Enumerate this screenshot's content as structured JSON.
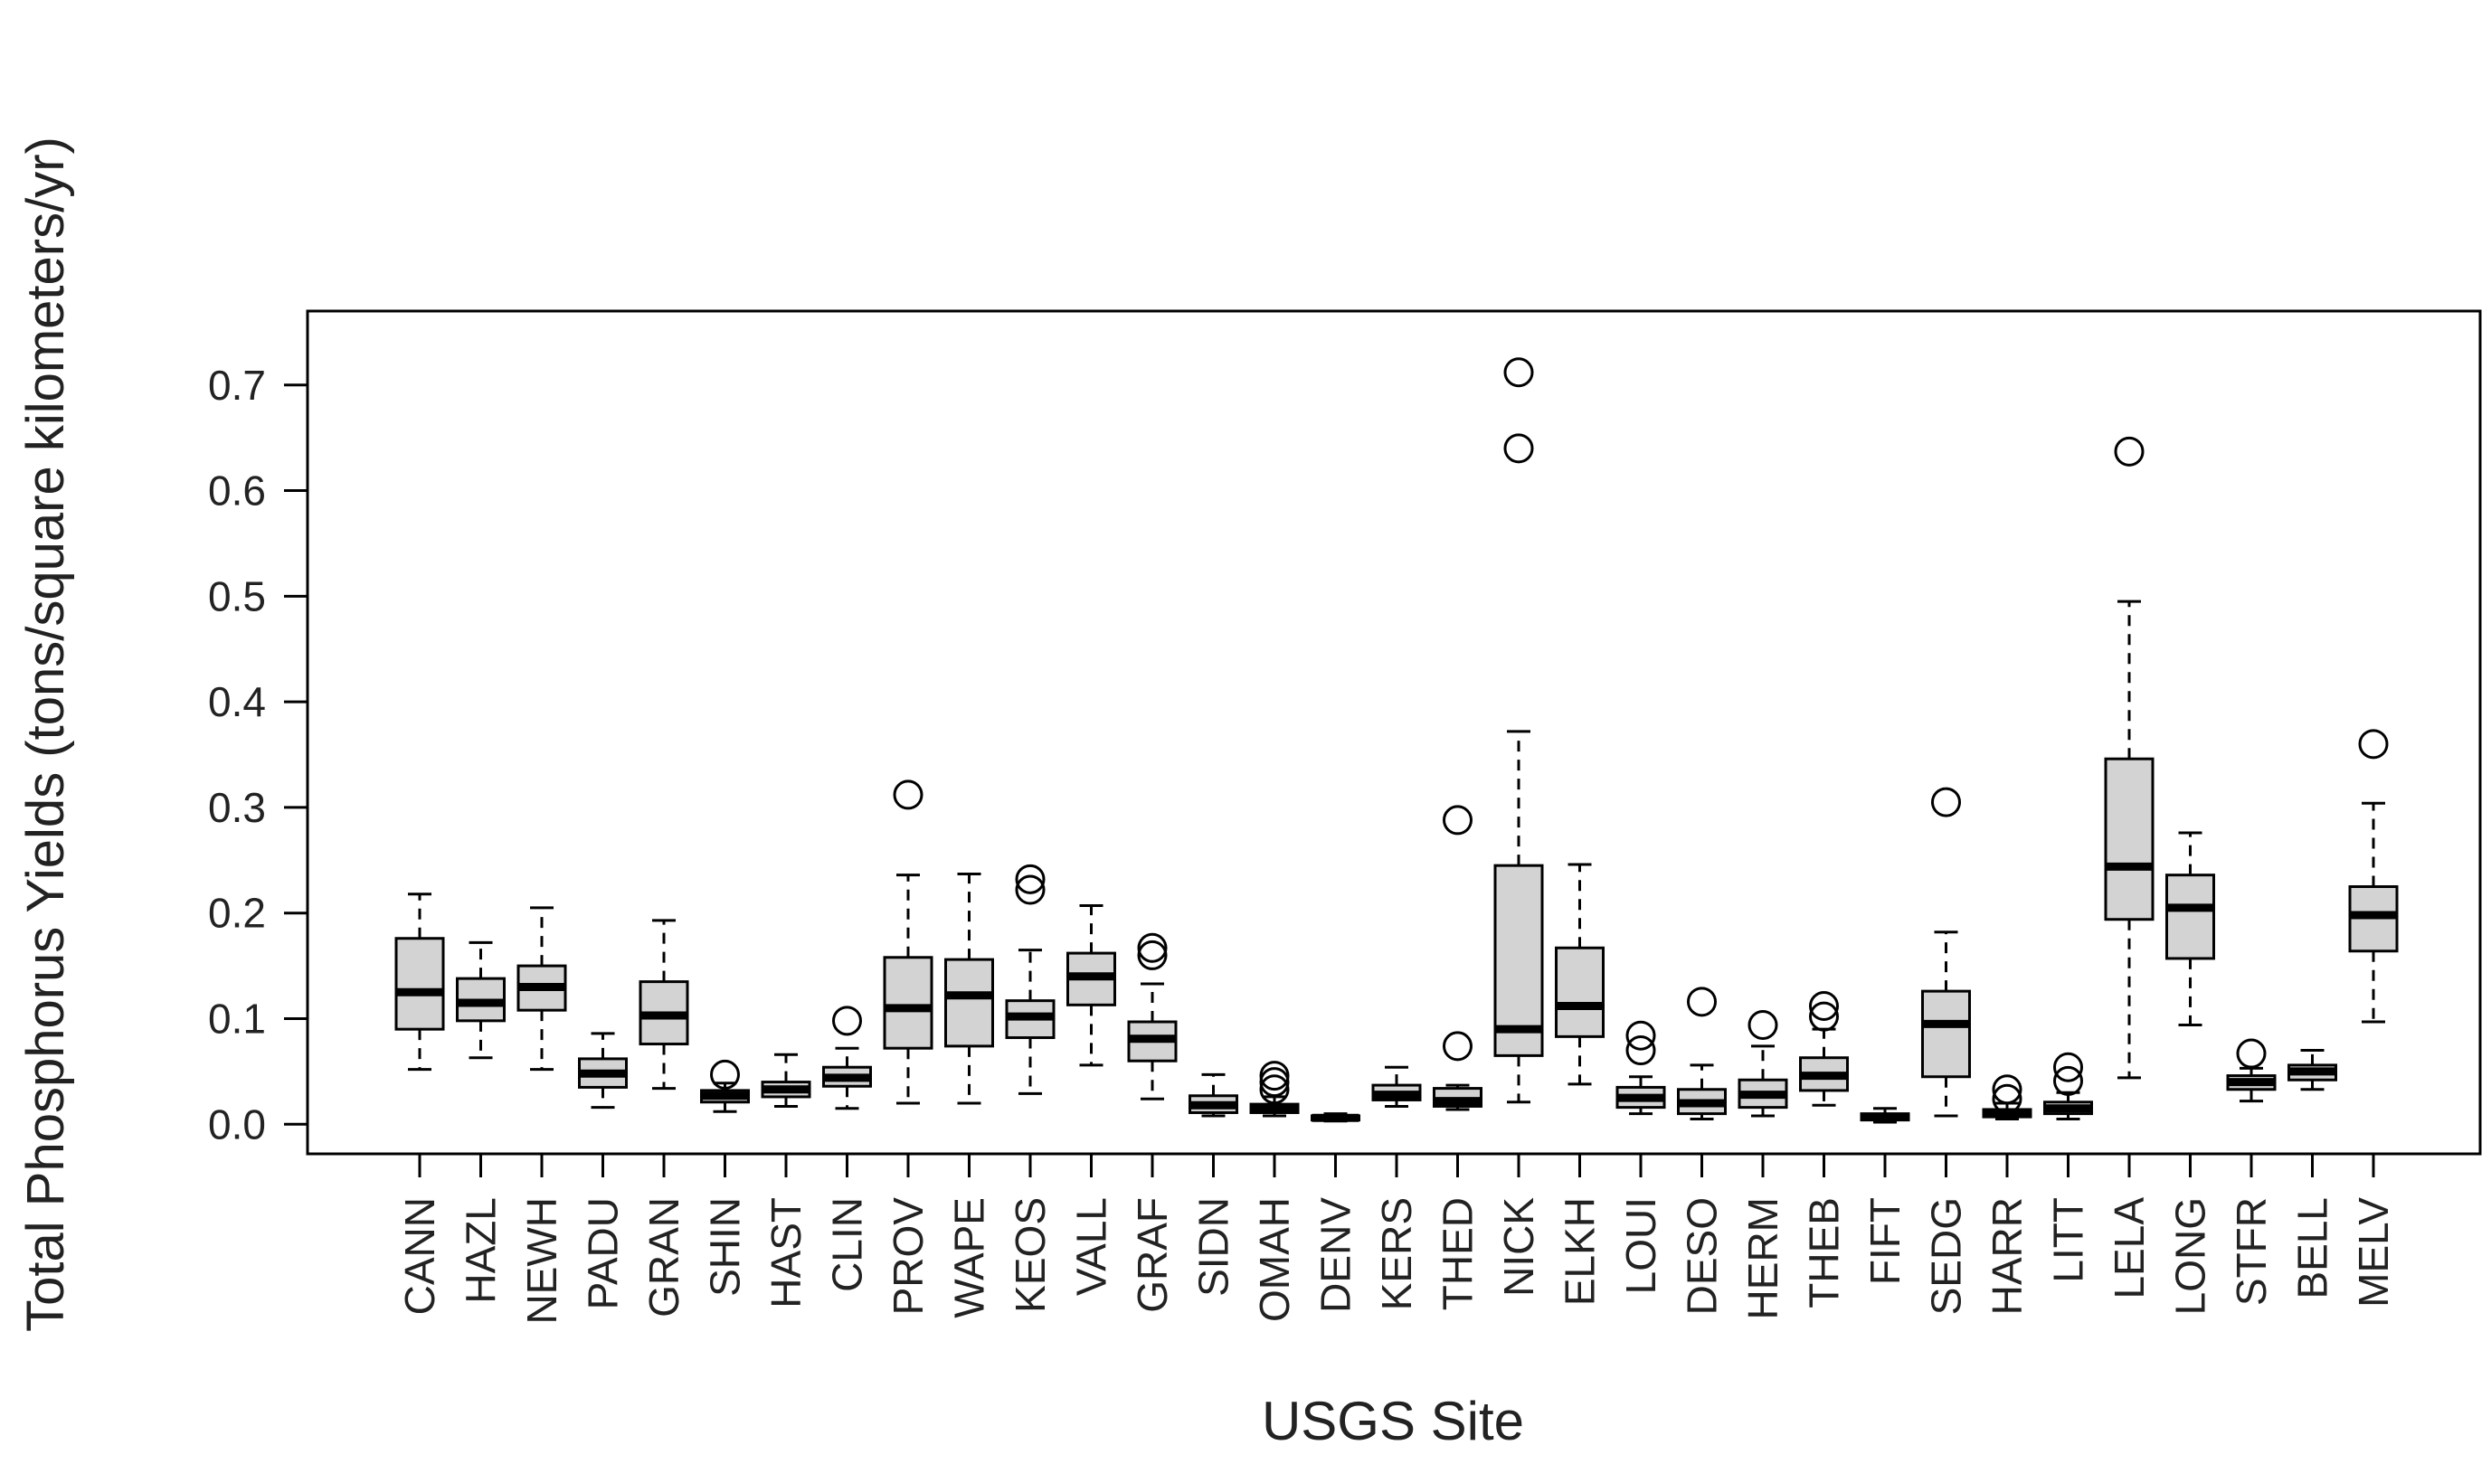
{
  "chart_data": {
    "type": "boxplot",
    "title": "",
    "xlabel": "USGS Site",
    "ylabel": "Total Phosphorus Yields (tons/square kilometers/yr)",
    "ylim": [
      -0.028,
      0.77
    ],
    "yticks": [
      0.0,
      0.1,
      0.2,
      0.3,
      0.4,
      0.5,
      0.6,
      0.7
    ],
    "ytick_labels": [
      "0.0",
      "0.1",
      "0.2",
      "0.3",
      "0.4",
      "0.5",
      "0.6",
      "0.7"
    ],
    "box_fill": "#d3d3d3",
    "box_stroke": "#000000",
    "categories": [
      "CANN",
      "HAZL",
      "NEWH",
      "PADU",
      "GRAN",
      "SHIN",
      "HAST",
      "CLIN",
      "PROV",
      "WAPE",
      "KEOS",
      "VALL",
      "GRAF",
      "SIDN",
      "OMAH",
      "DENV",
      "KERS",
      "THED",
      "NICK",
      "ELKH",
      "LOUI",
      "DESO",
      "HERM",
      "THEB",
      "FIFT",
      "SEDG",
      "HARR",
      "LITT",
      "LELA",
      "LONG",
      "STFR",
      "BELL",
      "MELV"
    ],
    "boxes": [
      {
        "site": "CANN",
        "min": 0.052,
        "q1": 0.09,
        "median": 0.125,
        "q3": 0.176,
        "max": 0.218,
        "outliers": []
      },
      {
        "site": "HAZL",
        "min": 0.063,
        "q1": 0.098,
        "median": 0.115,
        "q3": 0.138,
        "max": 0.172,
        "outliers": []
      },
      {
        "site": "NEWH",
        "min": 0.052,
        "q1": 0.108,
        "median": 0.13,
        "q3": 0.15,
        "max": 0.205,
        "outliers": []
      },
      {
        "site": "PADU",
        "min": 0.016,
        "q1": 0.035,
        "median": 0.048,
        "q3": 0.062,
        "max": 0.086,
        "outliers": []
      },
      {
        "site": "GRAN",
        "min": 0.034,
        "q1": 0.076,
        "median": 0.103,
        "q3": 0.135,
        "max": 0.193,
        "outliers": []
      },
      {
        "site": "SHIN",
        "min": 0.012,
        "q1": 0.021,
        "median": 0.027,
        "q3": 0.032,
        "max": 0.039,
        "outliers": [
          0.047
        ]
      },
      {
        "site": "HAST",
        "min": 0.017,
        "q1": 0.026,
        "median": 0.033,
        "q3": 0.04,
        "max": 0.066,
        "outliers": []
      },
      {
        "site": "CLIN",
        "min": 0.015,
        "q1": 0.036,
        "median": 0.044,
        "q3": 0.054,
        "max": 0.072,
        "outliers": [
          0.098
        ]
      },
      {
        "site": "PROV",
        "min": 0.02,
        "q1": 0.072,
        "median": 0.11,
        "q3": 0.158,
        "max": 0.236,
        "outliers": [
          0.312
        ]
      },
      {
        "site": "WAPE",
        "min": 0.02,
        "q1": 0.074,
        "median": 0.122,
        "q3": 0.156,
        "max": 0.237,
        "outliers": []
      },
      {
        "site": "KEOS",
        "min": 0.029,
        "q1": 0.082,
        "median": 0.102,
        "q3": 0.117,
        "max": 0.165,
        "outliers": [
          0.222,
          0.232
        ]
      },
      {
        "site": "VALL",
        "min": 0.056,
        "q1": 0.113,
        "median": 0.14,
        "q3": 0.162,
        "max": 0.207,
        "outliers": []
      },
      {
        "site": "GRAF",
        "min": 0.024,
        "q1": 0.06,
        "median": 0.081,
        "q3": 0.097,
        "max": 0.133,
        "outliers": [
          0.16,
          0.167
        ]
      },
      {
        "site": "SIDN",
        "min": 0.008,
        "q1": 0.011,
        "median": 0.018,
        "q3": 0.027,
        "max": 0.047,
        "outliers": []
      },
      {
        "site": "OMAH",
        "min": 0.008,
        "q1": 0.011,
        "median": 0.015,
        "q3": 0.019,
        "max": 0.026,
        "outliers": [
          0.033,
          0.04,
          0.046
        ]
      },
      {
        "site": "DENV",
        "min": 0.003,
        "q1": 0.004,
        "median": 0.006,
        "q3": 0.008,
        "max": 0.01,
        "outliers": []
      },
      {
        "site": "KERS",
        "min": 0.017,
        "q1": 0.023,
        "median": 0.028,
        "q3": 0.037,
        "max": 0.054,
        "outliers": []
      },
      {
        "site": "THED",
        "min": 0.014,
        "q1": 0.017,
        "median": 0.022,
        "q3": 0.034,
        "max": 0.037,
        "outliers": [
          0.074,
          0.288
        ]
      },
      {
        "site": "NICK",
        "min": 0.021,
        "q1": 0.065,
        "median": 0.09,
        "q3": 0.245,
        "max": 0.372,
        "outliers": [
          0.64,
          0.712
        ]
      },
      {
        "site": "ELKH",
        "min": 0.038,
        "q1": 0.083,
        "median": 0.112,
        "q3": 0.167,
        "max": 0.246,
        "outliers": []
      },
      {
        "site": "LOUI",
        "min": 0.01,
        "q1": 0.016,
        "median": 0.025,
        "q3": 0.035,
        "max": 0.045,
        "outliers": [
          0.07,
          0.084
        ]
      },
      {
        "site": "DESO",
        "min": 0.005,
        "q1": 0.01,
        "median": 0.02,
        "q3": 0.033,
        "max": 0.056,
        "outliers": [
          0.116
        ]
      },
      {
        "site": "HERM",
        "min": 0.008,
        "q1": 0.016,
        "median": 0.028,
        "q3": 0.042,
        "max": 0.074,
        "outliers": [
          0.094
        ]
      },
      {
        "site": "THEB",
        "min": 0.018,
        "q1": 0.032,
        "median": 0.046,
        "q3": 0.063,
        "max": 0.09,
        "outliers": [
          0.102,
          0.112
        ]
      },
      {
        "site": "FIFT",
        "min": 0.002,
        "q1": 0.004,
        "median": 0.007,
        "q3": 0.01,
        "max": 0.015,
        "outliers": []
      },
      {
        "site": "SEDG",
        "min": 0.008,
        "q1": 0.045,
        "median": 0.095,
        "q3": 0.126,
        "max": 0.182,
        "outliers": [
          0.305
        ]
      },
      {
        "site": "HARR",
        "min": 0.005,
        "q1": 0.007,
        "median": 0.01,
        "q3": 0.014,
        "max": 0.02,
        "outliers": [
          0.024,
          0.033
        ]
      },
      {
        "site": "LITT",
        "min": 0.005,
        "q1": 0.01,
        "median": 0.015,
        "q3": 0.021,
        "max": 0.03,
        "outliers": [
          0.041,
          0.054
        ]
      },
      {
        "site": "LELA",
        "min": 0.044,
        "q1": 0.194,
        "median": 0.244,
        "q3": 0.346,
        "max": 0.495,
        "outliers": [
          0.637
        ]
      },
      {
        "site": "LONG",
        "min": 0.094,
        "q1": 0.157,
        "median": 0.205,
        "q3": 0.236,
        "max": 0.276,
        "outliers": []
      },
      {
        "site": "STFR",
        "min": 0.022,
        "q1": 0.033,
        "median": 0.04,
        "q3": 0.046,
        "max": 0.053,
        "outliers": [
          0.067
        ]
      },
      {
        "site": "BELL",
        "min": 0.033,
        "q1": 0.042,
        "median": 0.05,
        "q3": 0.056,
        "max": 0.07,
        "outliers": []
      },
      {
        "site": "MELV",
        "min": 0.097,
        "q1": 0.164,
        "median": 0.198,
        "q3": 0.225,
        "max": 0.304,
        "outliers": [
          0.36
        ]
      }
    ]
  }
}
